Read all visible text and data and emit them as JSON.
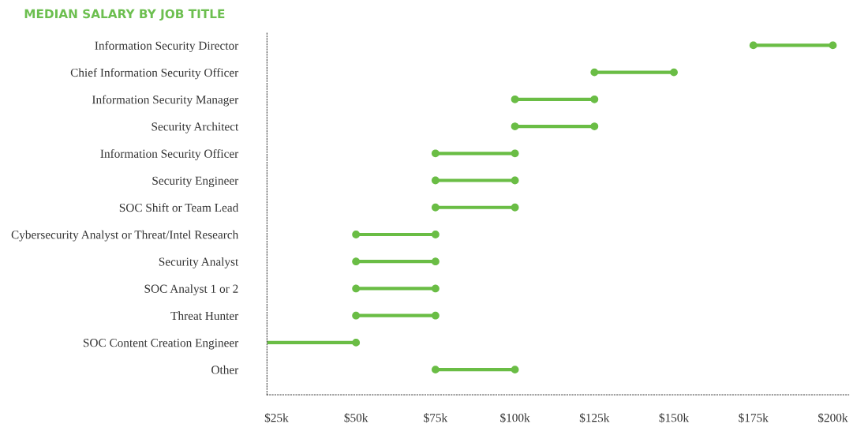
{
  "chart_data": {
    "type": "bar",
    "orientation": "horizontal",
    "title": "MEDIAN SALARY BY JOB TITLE",
    "categories": [
      "Information Security Director",
      "Chief Information Security Officer",
      "Information Security Manager",
      "Security Architect",
      "Information Security Officer",
      "Security Engineer",
      "SOC Shift or Team Lead",
      "Cybersecurity Analyst or Threat/Intel Research",
      "Security Analyst",
      "SOC Analyst 1 or 2",
      "Threat Hunter",
      "SOC Content Creation Engineer",
      "Other"
    ],
    "series": [
      {
        "color": "#6abd45",
        "base": [
          175,
          125,
          100,
          100,
          75,
          75,
          75,
          50,
          50,
          50,
          50,
          22,
          75
        ],
        "values": [
          25,
          25,
          25,
          25,
          25,
          25,
          25,
          25,
          25,
          25,
          25,
          28,
          25
        ]
      },
      {
        "type": "scatter",
        "color": "#6abd45",
        "marker": "circle",
        "values": [
          175,
          125,
          100,
          100,
          75,
          75,
          75,
          50,
          50,
          50,
          50,
          null,
          75
        ]
      },
      {
        "type": "scatter",
        "color": "#6abd45",
        "marker": "circle",
        "values": [
          200,
          150,
          125,
          125,
          100,
          100,
          100,
          75,
          75,
          75,
          75,
          50,
          100
        ]
      }
    ],
    "xlim": [
      22,
      205
    ],
    "xticks": [
      {
        "value": 25,
        "label": "$25k"
      },
      {
        "value": 50,
        "label": "$50k"
      },
      {
        "value": 75,
        "label": "$75k"
      },
      {
        "value": 100,
        "label": "$100k"
      },
      {
        "value": 125,
        "label": "$125k"
      },
      {
        "value": 150,
        "label": "$150k"
      },
      {
        "value": 175,
        "label": "$175k"
      },
      {
        "value": 200,
        "label": "$200k"
      }
    ],
    "grid": false,
    "legend": false
  }
}
